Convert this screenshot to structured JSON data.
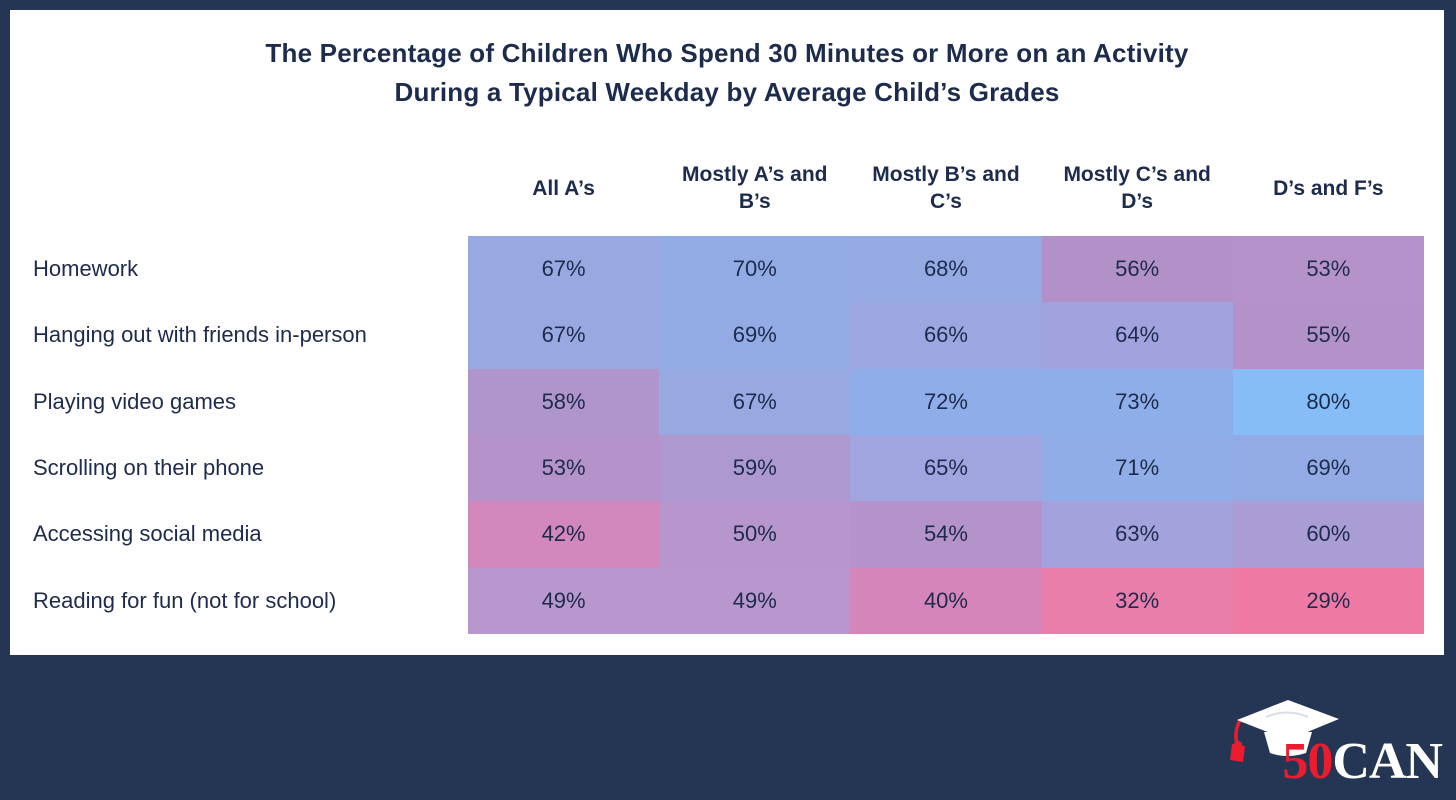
{
  "colors": {
    "background": "#243653",
    "card": "#FFFFFF",
    "ink": "#1D2B4C",
    "logo_red": "#EC1C2E",
    "logo_white": "#FFFFFF"
  },
  "title": {
    "line1": "The Percentage of Children Who Spend 30 Minutes or More on an Activity",
    "line2": "During a Typical Weekday by Average Child’s Grades"
  },
  "chart_data": {
    "type": "heatmap",
    "title": "The Percentage of Children Who Spend 30 Minutes or More on an Activity During a Typical Weekday by Average Child’s Grades",
    "value_suffix": "%",
    "columns": [
      "All A’s",
      "Mostly A’s and B’s",
      "Mostly B’s and C’s",
      "Mostly C’s and D’s",
      "D’s and F’s"
    ],
    "rows": [
      "Homework",
      "Hanging out with friends in-person",
      "Playing video games",
      "Scrolling on their phone",
      "Accessing social media",
      "Reading for fun (not for school)"
    ],
    "values": [
      [
        67,
        70,
        68,
        56,
        53
      ],
      [
        67,
        69,
        66,
        64,
        55
      ],
      [
        58,
        67,
        72,
        73,
        80
      ],
      [
        53,
        59,
        65,
        71,
        69
      ],
      [
        42,
        50,
        54,
        63,
        60
      ],
      [
        49,
        49,
        40,
        32,
        29
      ]
    ],
    "cell_colors": [
      [
        "#98A8E1",
        "#91ACE5",
        "#95AAE3",
        "#B291C8",
        "#B593CA"
      ],
      [
        "#98A8E1",
        "#93ABE4",
        "#9CA6E0",
        "#A2A3DE",
        "#B392C9"
      ],
      [
        "#B095CC",
        "#98A8E1",
        "#8FADE8",
        "#8EAEE9",
        "#87BDF6"
      ],
      [
        "#B593CA",
        "#AD98CF",
        "#A0A4DF",
        "#90ADE7",
        "#93ABE4"
      ],
      [
        "#D287BD",
        "#B796CD",
        "#B492CA",
        "#A4A2DC",
        "#AA9CD4"
      ],
      [
        "#B897CE",
        "#B897CE",
        "#D685BA",
        "#E87EA9",
        "#EE7AA3"
      ]
    ],
    "color_scale": {
      "low": "#EE7AA3",
      "mid": "#B291C8",
      "high": "#87BDF6",
      "domain": [
        29,
        80
      ]
    },
    "legend": "none",
    "grid": false
  },
  "logo": {
    "prefix": "50",
    "suffix": "CAN",
    "icon": "graduation-cap-icon"
  }
}
